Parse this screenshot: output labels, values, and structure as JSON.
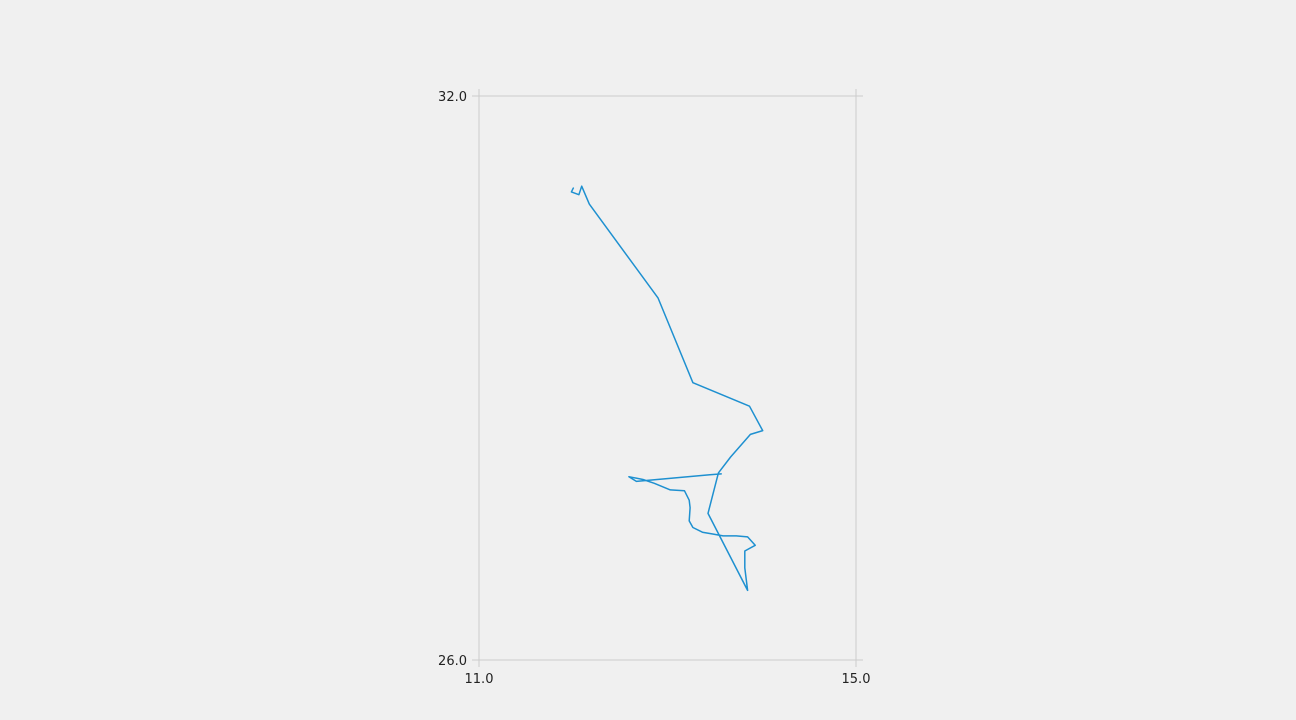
{
  "chart_data": {
    "type": "line",
    "title": "",
    "xlabel": "",
    "ylabel": "",
    "xlim": [
      11.0,
      15.0
    ],
    "ylim": [
      26.0,
      32.0
    ],
    "x_ticks": [
      "11.0",
      "15.0"
    ],
    "y_ticks": [
      "32.0",
      "26.0"
    ],
    "grid": false,
    "legend": "none",
    "line_color": "#1e90d0",
    "series": [
      {
        "x": [
          13.57,
          13.45,
          12.67,
          12.59,
          12.74,
          12.86,
          13.03,
          13.18,
          13.23,
          13.24,
          13.23,
          13.27,
          13.37,
          13.48,
          13.59,
          13.73,
          13.85,
          13.93,
          13.82,
          13.82,
          13.85,
          13.43,
          13.54,
          13.67,
          13.88,
          14.01,
          13.87,
          13.27,
          12.9,
          12.17,
          12.09,
          12.06,
          11.98,
          12.0
        ],
        "y": [
          27.98,
          27.97,
          27.9,
          27.95,
          27.92,
          27.88,
          27.81,
          27.8,
          27.7,
          27.62,
          27.48,
          27.41,
          27.36,
          27.34,
          27.32,
          27.32,
          27.31,
          27.22,
          27.16,
          26.98,
          26.74,
          27.56,
          27.99,
          28.16,
          28.4,
          28.44,
          28.7,
          28.95,
          29.85,
          30.85,
          31.04,
          30.95,
          30.98,
          31.02
        ]
      }
    ]
  }
}
